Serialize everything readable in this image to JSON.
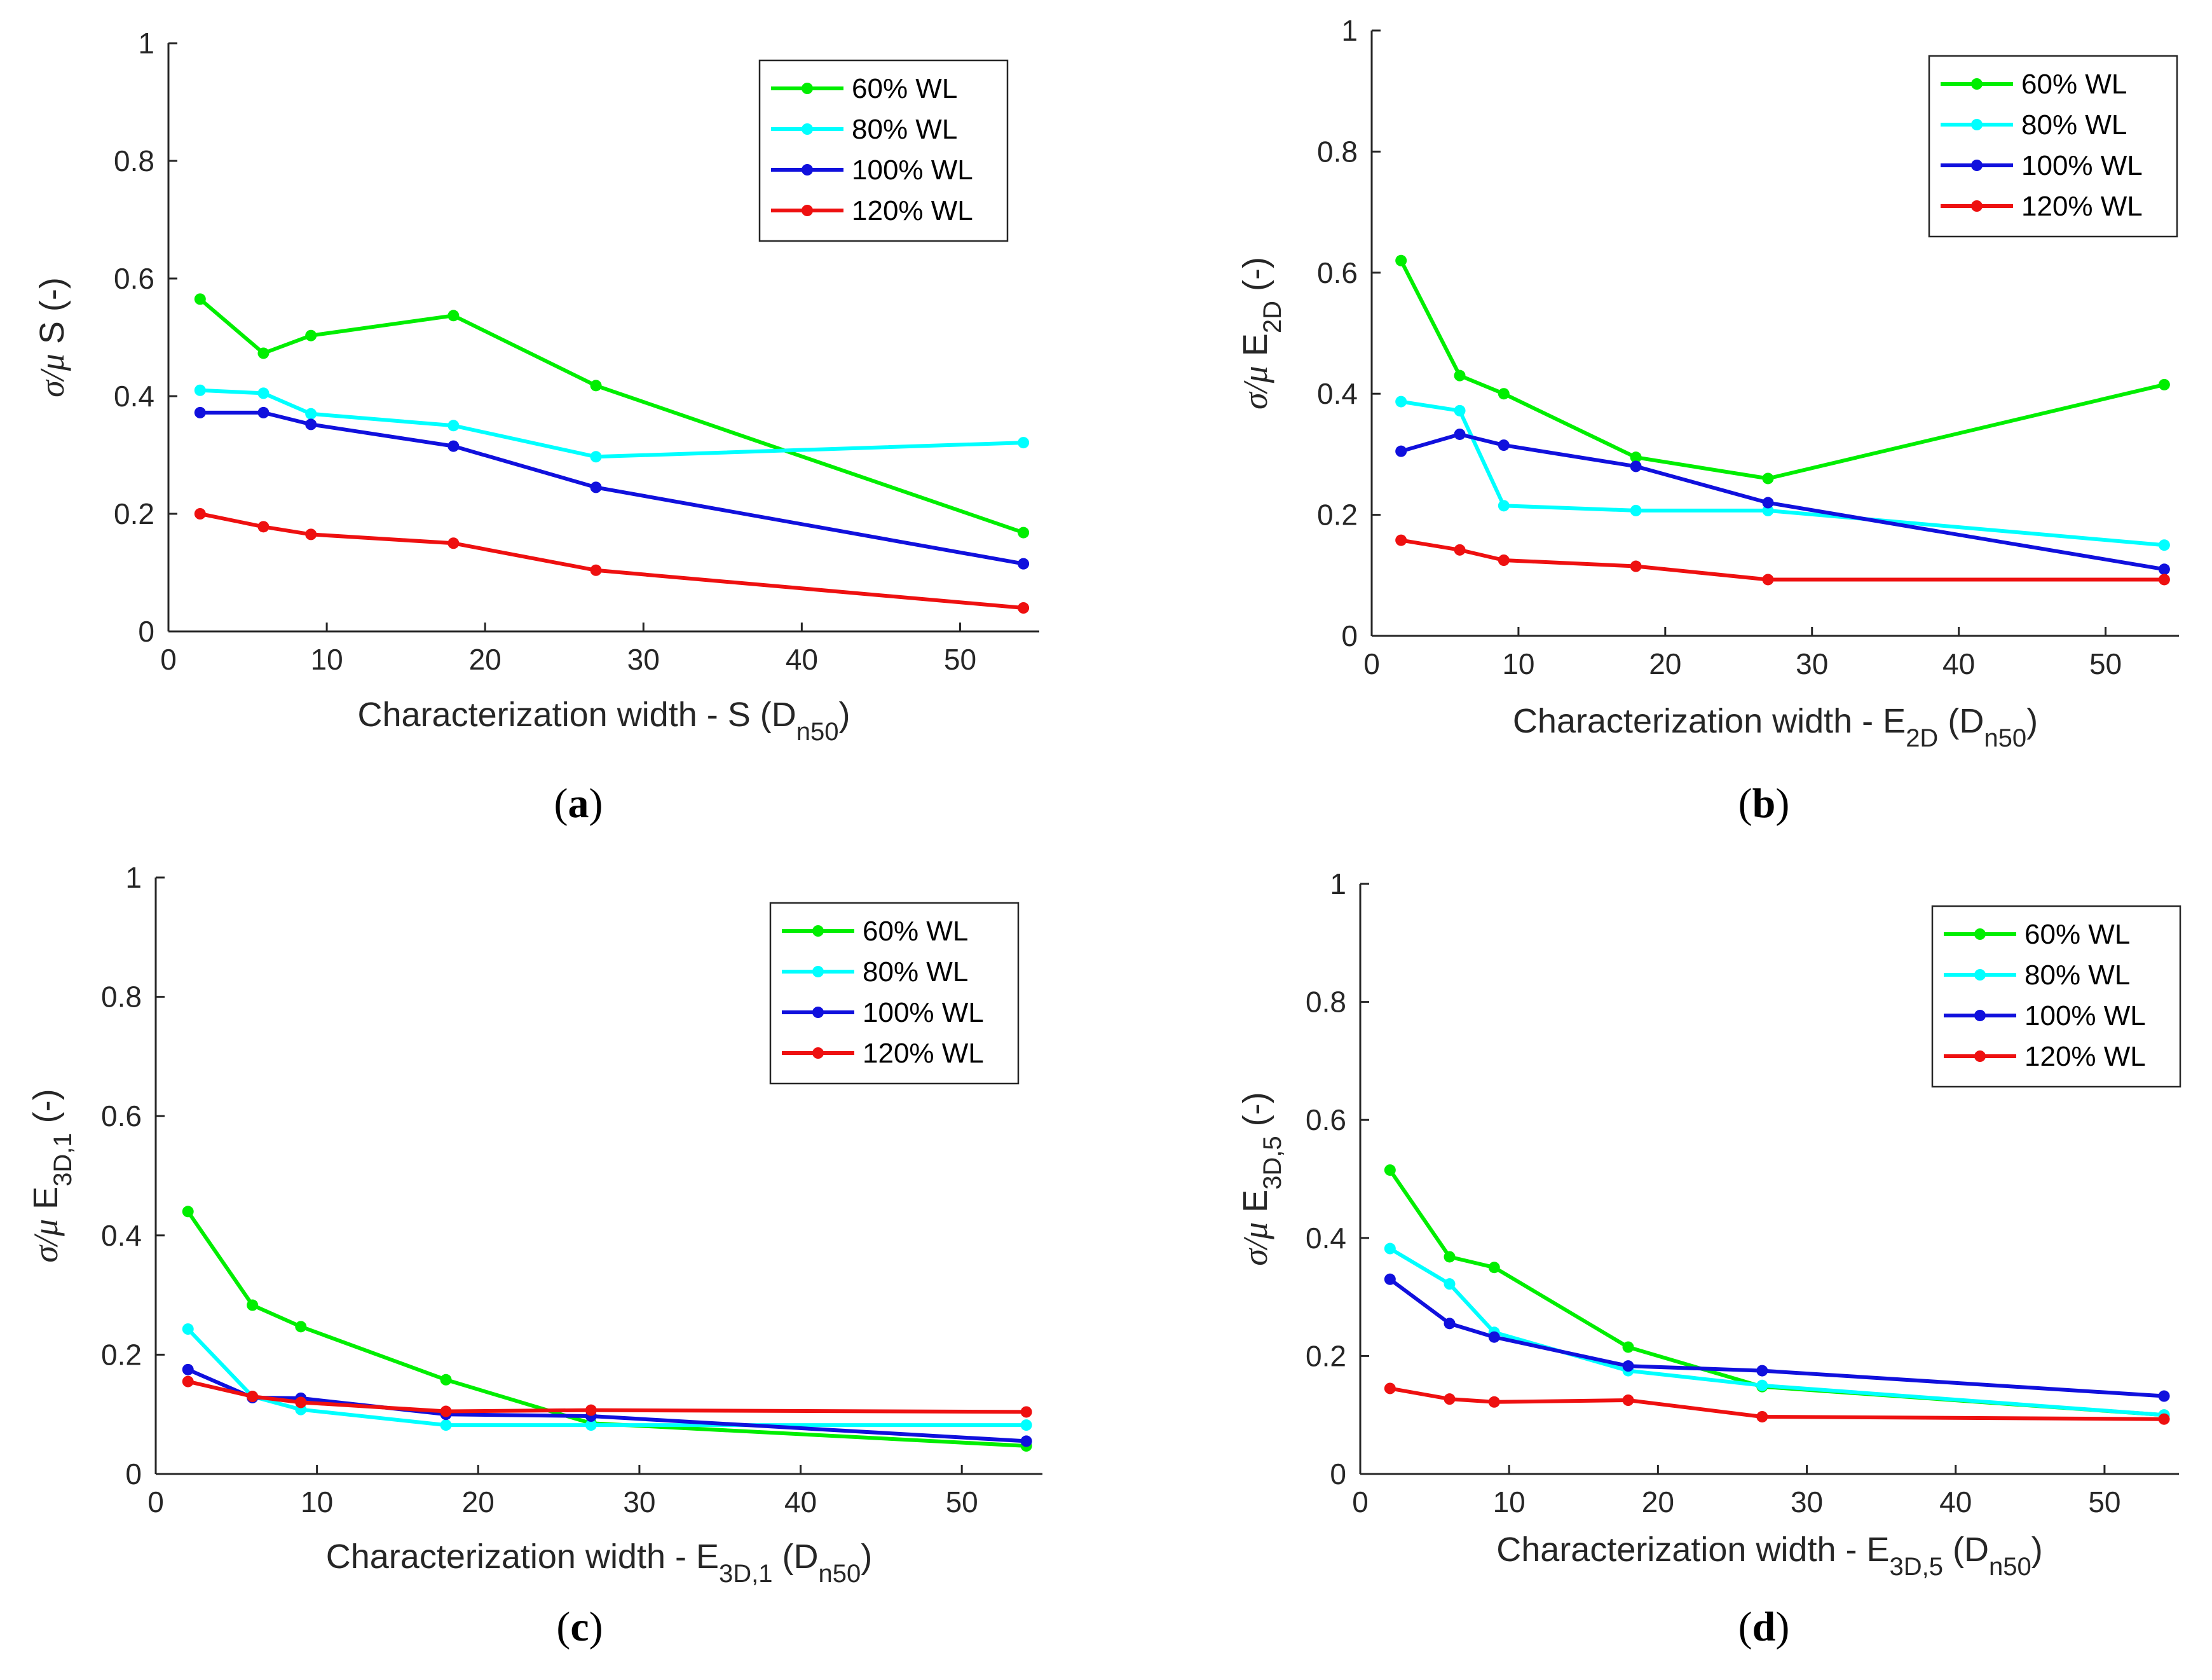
{
  "figure_title": "",
  "colors": {
    "60% WL": "#00ee00",
    "80% WL": "#00ffff",
    "100% WL": "#1010dd",
    "120% WL": "#ee1010",
    "axis": "#262626"
  },
  "chart_data": [
    {
      "id": "a",
      "type": "line",
      "panel_label": "a",
      "title": "",
      "ylabel": {
        "prefix": "σ/μ",
        "main": "S",
        "sub": "",
        "suffix": " (-)"
      },
      "xlabel": {
        "main": "Characterization width - S",
        "sub": "",
        "dn": "D",
        "dn_sub": "n50"
      },
      "xlim": [
        0,
        55
      ],
      "ylim": [
        0,
        1
      ],
      "xticks": [
        0,
        10,
        20,
        30,
        40,
        50
      ],
      "yticks": [
        0,
        0.2,
        0.4,
        0.6,
        0.8,
        1
      ],
      "ytick_labels": [
        "0",
        "0.2",
        "0.4",
        "0.6",
        "0.8",
        "1"
      ],
      "x": [
        2,
        6,
        9,
        18,
        27,
        54
      ],
      "legend_position": "top-right",
      "series": [
        {
          "name": "60% WL",
          "values": [
            0.565,
            0.473,
            0.503,
            0.537,
            0.418,
            0.168
          ]
        },
        {
          "name": "80% WL",
          "values": [
            0.41,
            0.405,
            0.37,
            0.35,
            0.297,
            0.321
          ]
        },
        {
          "name": "100% WL",
          "values": [
            0.372,
            0.372,
            0.352,
            0.315,
            0.245,
            0.115
          ]
        },
        {
          "name": "120% WL",
          "values": [
            0.2,
            0.178,
            0.165,
            0.15,
            0.104,
            0.04
          ]
        }
      ]
    },
    {
      "id": "b",
      "type": "line",
      "panel_label": "b",
      "title": "",
      "ylabel": {
        "prefix": "σ/μ",
        "main": "E",
        "sub": "2D",
        "suffix": " (-)"
      },
      "xlabel": {
        "main": "Characterization width - E",
        "sub": "2D",
        "dn": "D",
        "dn_sub": "n50"
      },
      "xlim": [
        0,
        55
      ],
      "ylim": [
        0,
        1
      ],
      "xticks": [
        0,
        10,
        20,
        30,
        40,
        50
      ],
      "yticks": [
        0,
        0.2,
        0.4,
        0.6,
        0.8,
        1
      ],
      "ytick_labels": [
        "0",
        "0.2",
        "0.4",
        "0.6",
        "0.8",
        "1"
      ],
      "x": [
        2,
        6,
        9,
        18,
        27,
        54
      ],
      "legend_position": "top-right",
      "series": [
        {
          "name": "60% WL",
          "values": [
            0.62,
            0.43,
            0.4,
            0.295,
            0.26,
            0.415
          ]
        },
        {
          "name": "80% WL",
          "values": [
            0.387,
            0.372,
            0.215,
            0.207,
            0.207,
            0.15
          ]
        },
        {
          "name": "100% WL",
          "values": [
            0.305,
            0.333,
            0.315,
            0.28,
            0.22,
            0.11
          ]
        },
        {
          "name": "120% WL",
          "values": [
            0.158,
            0.142,
            0.125,
            0.115,
            0.093,
            0.093
          ]
        }
      ]
    },
    {
      "id": "c",
      "type": "line",
      "panel_label": "c",
      "title": "",
      "ylabel": {
        "prefix": "σ/μ",
        "main": "E",
        "sub": "3D,1",
        "suffix": " (-)"
      },
      "xlabel": {
        "main": "Characterization width - E",
        "sub": "3D,1",
        "dn": "D",
        "dn_sub": "n50"
      },
      "xlim": [
        0,
        55
      ],
      "ylim": [
        0,
        1
      ],
      "xticks": [
        0,
        10,
        20,
        30,
        40,
        50
      ],
      "yticks": [
        0,
        0.2,
        0.4,
        0.6,
        0.8,
        1
      ],
      "ytick_labels": [
        "0",
        "0.2",
        "0.4",
        "0.6",
        "0.8",
        "1"
      ],
      "x": [
        2,
        6,
        9,
        18,
        27,
        54
      ],
      "legend_position": "top-right",
      "series": [
        {
          "name": "60% WL",
          "values": [
            0.44,
            0.283,
            0.247,
            0.158,
            0.085,
            0.047
          ]
        },
        {
          "name": "80% WL",
          "values": [
            0.243,
            0.13,
            0.108,
            0.082,
            0.082,
            0.082
          ]
        },
        {
          "name": "100% WL",
          "values": [
            0.175,
            0.128,
            0.127,
            0.1,
            0.097,
            0.055
          ]
        },
        {
          "name": "120% WL",
          "values": [
            0.155,
            0.13,
            0.12,
            0.105,
            0.107,
            0.104
          ]
        }
      ]
    },
    {
      "id": "d",
      "type": "line",
      "panel_label": "d",
      "title": "",
      "ylabel": {
        "prefix": "σ/μ",
        "main": "E",
        "sub": "3D,5",
        "suffix": " (-)"
      },
      "xlabel": {
        "main": "Characterization width - E",
        "sub": "3D,5",
        "dn": "D",
        "dn_sub": "n50"
      },
      "xlim": [
        0,
        55
      ],
      "ylim": [
        0,
        1
      ],
      "xticks": [
        0,
        10,
        20,
        30,
        40,
        50
      ],
      "yticks": [
        0,
        0.2,
        0.4,
        0.6,
        0.8,
        1
      ],
      "ytick_labels": [
        "0",
        "0.2",
        "0.4",
        "0.6",
        "0.8",
        "1"
      ],
      "x": [
        2,
        6,
        9,
        18,
        27,
        54
      ],
      "legend_position": "top-right",
      "series": [
        {
          "name": "60% WL",
          "values": [
            0.515,
            0.368,
            0.35,
            0.215,
            0.148,
            0.1
          ]
        },
        {
          "name": "80% WL",
          "values": [
            0.382,
            0.322,
            0.24,
            0.175,
            0.15,
            0.1
          ]
        },
        {
          "name": "100% WL",
          "values": [
            0.33,
            0.255,
            0.232,
            0.183,
            0.175,
            0.132
          ]
        },
        {
          "name": "120% WL",
          "values": [
            0.145,
            0.127,
            0.122,
            0.125,
            0.097,
            0.093
          ]
        }
      ]
    }
  ]
}
